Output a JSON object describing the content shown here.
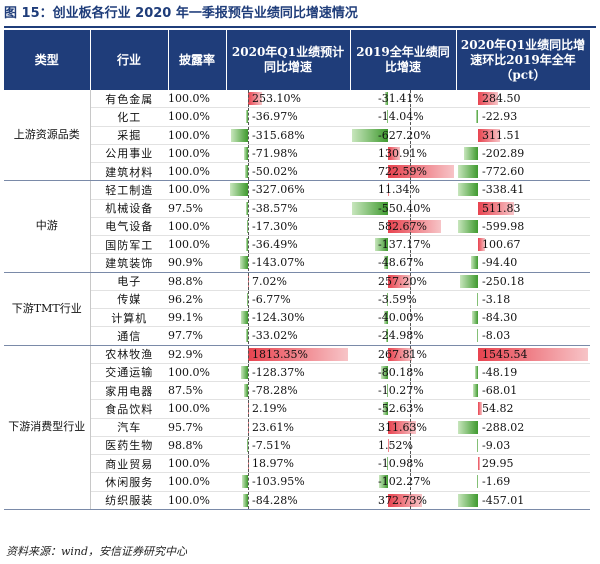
{
  "title": "图 15：创业板各行业 2020 年一季报预告业绩同比增速情况",
  "headers": {
    "type": "类型",
    "industry": "行业",
    "ratio": "披露率",
    "q1_yoy": "2020年Q1业绩预计同比增速",
    "full2019_yoy": "2019全年业绩同比增速",
    "q1_vs_2019": "2020年Q1业绩同比增速环比2019年全年（pct）"
  },
  "groups": [
    {
      "label": "上游资源品类",
      "rows": [
        {
          "industry": "有色金属",
          "ratio": "100.0%",
          "q1": "253.10%",
          "fy": "-31.41%",
          "pct": "284.50",
          "q1v": 253.1,
          "fyv": -31.41,
          "pctv": 284.5
        },
        {
          "industry": "化工",
          "ratio": "100.0%",
          "q1": "-36.97%",
          "fy": "-14.04%",
          "pct": "-22.93",
          "q1v": -36.97,
          "fyv": -14.04,
          "pctv": -22.93
        },
        {
          "industry": "采掘",
          "ratio": "100.0%",
          "q1": "-315.68%",
          "fy": "-627.20%",
          "pct": "311.51",
          "q1v": -315.68,
          "fyv": -627.2,
          "pctv": 311.51
        },
        {
          "industry": "公用事业",
          "ratio": "100.0%",
          "q1": "-71.98%",
          "fy": "130.91%",
          "pct": "-202.89",
          "q1v": -71.98,
          "fyv": 130.91,
          "pctv": -202.89
        },
        {
          "industry": "建筑材料",
          "ratio": "100.0%",
          "q1": "-50.02%",
          "fy": "722.59%",
          "pct": "-772.60",
          "q1v": -50.02,
          "fyv": 722.59,
          "pctv": -772.6
        }
      ]
    },
    {
      "label": "中游",
      "rows": [
        {
          "industry": "轻工制造",
          "ratio": "100.0%",
          "q1": "-327.06%",
          "fy": "11.34%",
          "pct": "-338.41",
          "q1v": -327.06,
          "fyv": 11.34,
          "pctv": -338.41
        },
        {
          "industry": "机械设备",
          "ratio": "97.5%",
          "q1": "-38.57%",
          "fy": "-550.40%",
          "pct": "511.83",
          "q1v": -38.57,
          "fyv": -550.4,
          "pctv": 511.83
        },
        {
          "industry": "电气设备",
          "ratio": "100.0%",
          "q1": "-17.30%",
          "fy": "582.67%",
          "pct": "-599.98",
          "q1v": -17.3,
          "fyv": 582.67,
          "pctv": -599.98
        },
        {
          "industry": "国防军工",
          "ratio": "100.0%",
          "q1": "-36.49%",
          "fy": "-137.17%",
          "pct": "100.67",
          "q1v": -36.49,
          "fyv": -137.17,
          "pctv": 100.67
        },
        {
          "industry": "建筑装饰",
          "ratio": "90.9%",
          "q1": "-143.07%",
          "fy": "-48.67%",
          "pct": "-94.40",
          "q1v": -143.07,
          "fyv": -48.67,
          "pctv": -94.4
        }
      ]
    },
    {
      "label": "下游TMT行业",
      "rows": [
        {
          "industry": "电子",
          "ratio": "98.8%",
          "q1": "7.02%",
          "fy": "257.20%",
          "pct": "-250.18",
          "q1v": 7.02,
          "fyv": 257.2,
          "pctv": -250.18
        },
        {
          "industry": "传媒",
          "ratio": "96.2%",
          "q1": "-6.77%",
          "fy": "-3.59%",
          "pct": "-3.18",
          "q1v": -6.77,
          "fyv": -3.59,
          "pctv": -3.18
        },
        {
          "industry": "计算机",
          "ratio": "99.1%",
          "q1": "-124.30%",
          "fy": "-40.00%",
          "pct": "-84.30",
          "q1v": -124.3,
          "fyv": -40.0,
          "pctv": -84.3
        },
        {
          "industry": "通信",
          "ratio": "97.7%",
          "q1": "-33.02%",
          "fy": "-24.98%",
          "pct": "-8.03",
          "q1v": -33.02,
          "fyv": -24.98,
          "pctv": -8.03
        }
      ]
    },
    {
      "label": "下游消费型行业",
      "rows": [
        {
          "industry": "农林牧渔",
          "ratio": "92.9%",
          "q1": "1813.35%",
          "fy": "267.81%",
          "pct": "1545.54",
          "q1v": 1813.35,
          "fyv": 267.81,
          "pctv": 1545.54
        },
        {
          "industry": "交通运输",
          "ratio": "100.0%",
          "q1": "-128.37%",
          "fy": "-80.18%",
          "pct": "-48.19",
          "q1v": -128.37,
          "fyv": -80.18,
          "pctv": -48.19
        },
        {
          "industry": "家用电器",
          "ratio": "87.5%",
          "q1": "-78.28%",
          "fy": "-10.27%",
          "pct": "-68.01",
          "q1v": -78.28,
          "fyv": -10.27,
          "pctv": -68.01
        },
        {
          "industry": "食品饮料",
          "ratio": "100.0%",
          "q1": "2.19%",
          "fy": "-52.63%",
          "pct": "54.82",
          "q1v": 2.19,
          "fyv": -52.63,
          "pctv": 54.82
        },
        {
          "industry": "汽车",
          "ratio": "95.7%",
          "q1": "23.61%",
          "fy": "311.63%",
          "pct": "-288.02",
          "q1v": 23.61,
          "fyv": 311.63,
          "pctv": -288.02
        },
        {
          "industry": "医药生物",
          "ratio": "98.8%",
          "q1": "-7.51%",
          "fy": "1.52%",
          "pct": "-9.03",
          "q1v": -7.51,
          "fyv": 1.52,
          "pctv": -9.03
        },
        {
          "industry": "商业贸易",
          "ratio": "100.0%",
          "q1": "18.97%",
          "fy": "-10.98%",
          "pct": "29.95",
          "q1v": 18.97,
          "fyv": -10.98,
          "pctv": 29.95
        },
        {
          "industry": "休闲服务",
          "ratio": "100.0%",
          "q1": "-103.95%",
          "fy": "-102.27%",
          "pct": "-1.69",
          "q1v": -103.95,
          "fyv": -102.27,
          "pctv": -1.69
        },
        {
          "industry": "纺织服装",
          "ratio": "100.0%",
          "q1": "-84.28%",
          "fy": "372.73%",
          "pct": "-457.01",
          "q1v": -84.28,
          "fyv": 372.73,
          "pctv": -457.01
        }
      ]
    }
  ],
  "footer": "资料来源：wind，安信证券研究中心",
  "colors": {
    "header_bg": "#1f3d7a",
    "positive_bar": "#e8434f",
    "negative_bar": "#3f9a2f"
  }
}
